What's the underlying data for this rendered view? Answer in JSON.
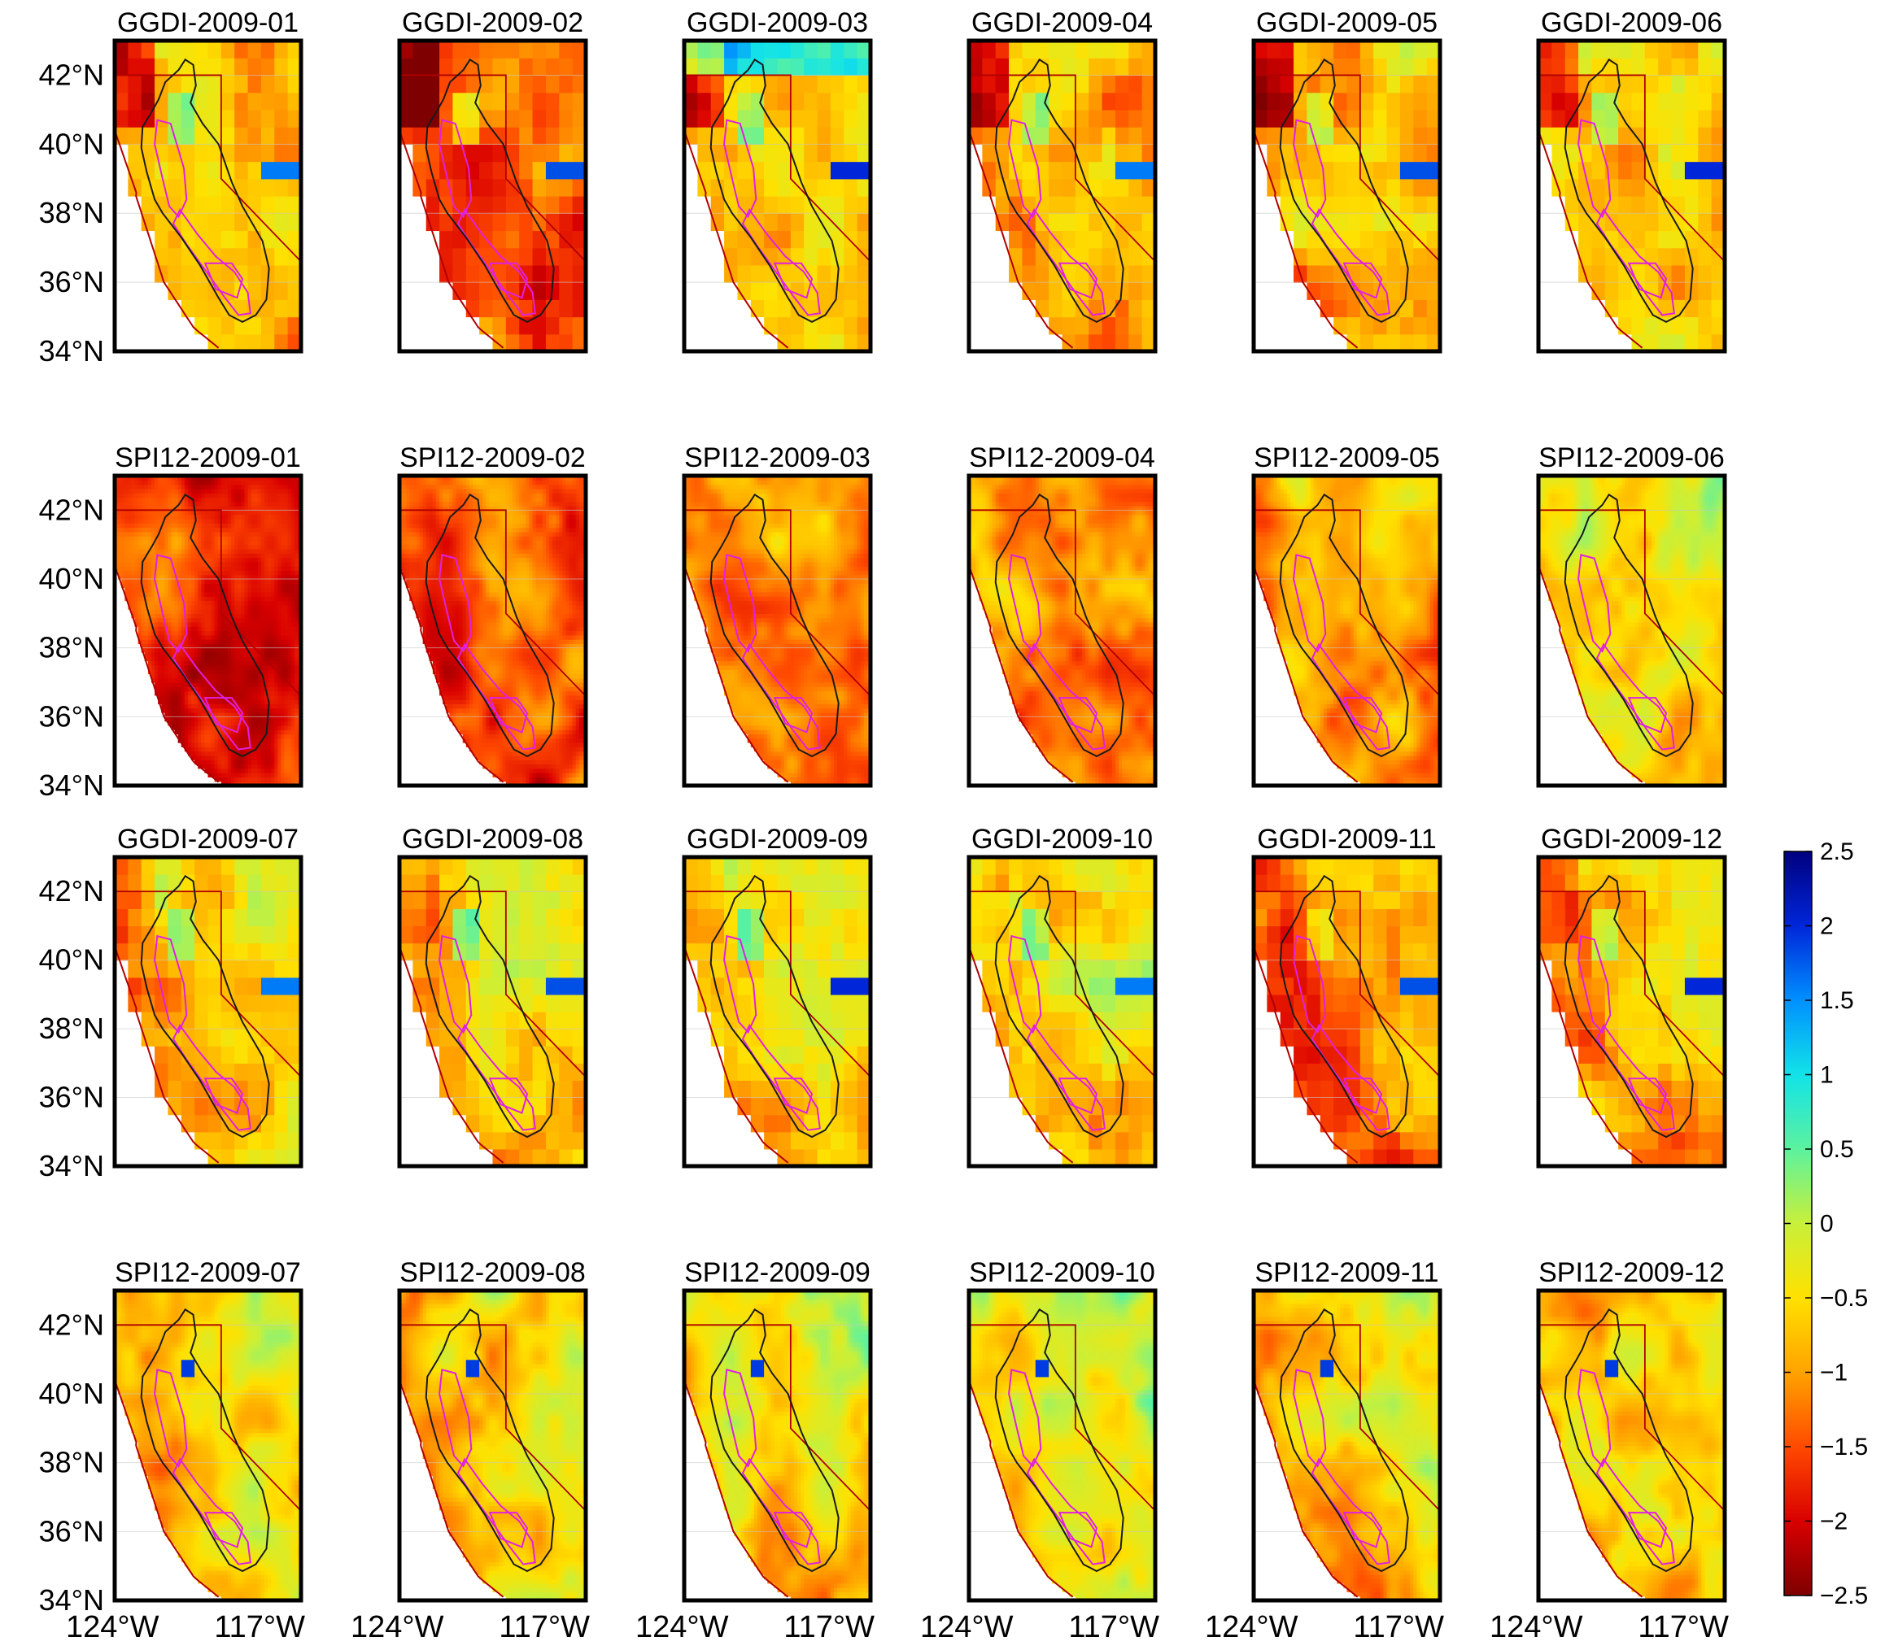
{
  "panels": [
    [
      "GGDI-2009-01",
      "GGDI-2009-02",
      "GGDI-2009-03",
      "GGDI-2009-04",
      "GGDI-2009-05",
      "GGDI-2009-06"
    ],
    [
      "SPI12-2009-01",
      "SPI12-2009-02",
      "SPI12-2009-03",
      "SPI12-2009-04",
      "SPI12-2009-05",
      "SPI12-2009-06"
    ],
    [
      "GGDI-2009-07",
      "GGDI-2009-08",
      "GGDI-2009-09",
      "GGDI-2009-10",
      "GGDI-2009-11",
      "GGDI-2009-12"
    ],
    [
      "SPI12-2009-07",
      "SPI12-2009-08",
      "SPI12-2009-09",
      "SPI12-2009-10",
      "SPI12-2009-11",
      "SPI12-2009-12"
    ]
  ],
  "lat_labels": [
    "42°N",
    "40°N",
    "38°N",
    "36°N",
    "34°N"
  ],
  "lon_labels": [
    "124°W",
    "117°W"
  ],
  "colorbar": {
    "ticks": [
      "2.5",
      "2",
      "1.5",
      "1",
      "0.5",
      "0",
      "−0.5",
      "−1",
      "−1.5",
      "−2",
      "−2.5"
    ],
    "min": -2.5,
    "max": 2.5,
    "colormap": [
      "#7f0000",
      "#d90000",
      "#ff4a00",
      "#ffa300",
      "#ffe100",
      "#c8f03a",
      "#5cf29f",
      "#12e3e8",
      "#0090ff",
      "#0026d9",
      "#00007f"
    ]
  },
  "map_style": {
    "frame": "#000000",
    "state_border": "#b00000",
    "basin_outline": "#1a1a1a",
    "subbasin": "#e020e0"
  },
  "panel_mean_index": [
    [
      -0.9,
      -1.4,
      -0.6,
      -0.9,
      -0.9,
      -0.7
    ],
    [
      -1.7,
      -1.45,
      -1.25,
      -1.05,
      -1.0,
      -0.55
    ],
    [
      -0.75,
      -0.75,
      -0.55,
      -0.6,
      -1.2,
      -0.85
    ],
    [
      -0.6,
      -0.65,
      -0.6,
      -0.4,
      -0.6,
      -0.7
    ]
  ]
}
